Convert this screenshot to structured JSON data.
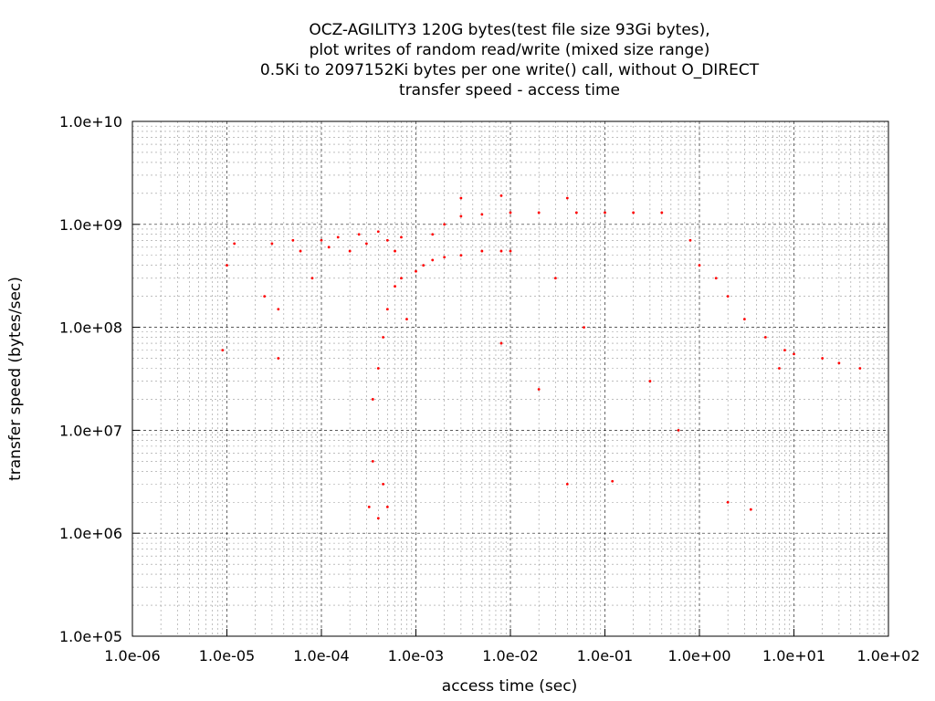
{
  "chart_data": {
    "type": "scatter",
    "title_lines": [
      "OCZ-AGILITY3 120G bytes(test file size 93Gi bytes),",
      "plot writes of random read/write (mixed size range)",
      "0.5Ki to 2097152Ki bytes per one write() call, without O_DIRECT",
      "transfer speed - access time"
    ],
    "xlabel": "access time (sec)",
    "ylabel": "transfer speed (bytes/sec)",
    "xscale": "log",
    "yscale": "log",
    "xlim": [
      1e-06,
      100
    ],
    "ylim": [
      100000.0,
      10000000000.0
    ],
    "xticks": [
      1e-06,
      1e-05,
      0.0001,
      0.001,
      0.01,
      0.1,
      1,
      10,
      100
    ],
    "xtick_labels": [
      "1.0e-06",
      "1.0e-05",
      "1.0e-04",
      "1.0e-03",
      "1.0e-02",
      "1.0e-01",
      "1.0e+00",
      "1.0e+01",
      "1.0e+02"
    ],
    "yticks": [
      100000.0,
      1000000.0,
      10000000.0,
      100000000.0,
      1000000000.0,
      10000000000.0
    ],
    "ytick_labels": [
      "1.0e+05",
      "1.0e+06",
      "1.0e+07",
      "1.0e+08",
      "1.0e+09",
      "1.0e+10"
    ],
    "grid": true,
    "marker_color": "#ff0000",
    "series": [
      {
        "values": [
          [
            1e-05,
            400000000.0
          ],
          [
            1.2e-05,
            650000000.0
          ],
          [
            2.5e-05,
            200000000.0
          ],
          [
            3.5e-05,
            150000000.0
          ],
          [
            3.5e-05,
            50000000.0
          ],
          [
            9e-06,
            60000000.0
          ],
          [
            3e-05,
            650000000.0
          ],
          [
            5e-05,
            700000000.0
          ],
          [
            6e-05,
            550000000.0
          ],
          [
            8e-05,
            300000000.0
          ],
          [
            0.0001,
            700000000.0
          ],
          [
            0.00012,
            600000000.0
          ],
          [
            0.00015,
            750000000.0
          ],
          [
            0.0002,
            550000000.0
          ],
          [
            0.00025,
            800000000.0
          ],
          [
            0.0003,
            650000000.0
          ],
          [
            0.0004,
            850000000.0
          ],
          [
            0.0005,
            700000000.0
          ],
          [
            0.0006,
            550000000.0
          ],
          [
            0.0007,
            750000000.0
          ],
          [
            0.00032,
            1800000.0
          ],
          [
            0.0004,
            1400000.0
          ],
          [
            0.0005,
            1800000.0
          ],
          [
            0.00035,
            5000000.0
          ],
          [
            0.00045,
            3000000.0
          ],
          [
            0.00035,
            20000000.0
          ],
          [
            0.0004,
            40000000.0
          ],
          [
            0.00045,
            80000000.0
          ],
          [
            0.0005,
            150000000.0
          ],
          [
            0.0006,
            250000000.0
          ],
          [
            0.0007,
            300000000.0
          ],
          [
            0.0008,
            120000000.0
          ],
          [
            0.001,
            350000000.0
          ],
          [
            0.0012,
            400000000.0
          ],
          [
            0.0015,
            450000000.0
          ],
          [
            0.002,
            480000000.0
          ],
          [
            0.003,
            500000000.0
          ],
          [
            0.005,
            550000000.0
          ],
          [
            0.008,
            550000000.0
          ],
          [
            0.01,
            550000000.0
          ],
          [
            0.0015,
            800000000.0
          ],
          [
            0.002,
            1000000000.0
          ],
          [
            0.003,
            1200000000.0
          ],
          [
            0.005,
            1250000000.0
          ],
          [
            0.01,
            1300000000.0
          ],
          [
            0.02,
            1300000000.0
          ],
          [
            0.05,
            1300000000.0
          ],
          [
            0.1,
            1300000000.0
          ],
          [
            0.2,
            1300000000.0
          ],
          [
            0.4,
            1300000000.0
          ],
          [
            0.003,
            1800000000.0
          ],
          [
            0.008,
            1900000000.0
          ],
          [
            0.04,
            1800000000.0
          ],
          [
            0.8,
            700000000.0
          ],
          [
            1.0,
            400000000.0
          ],
          [
            1.5,
            300000000.0
          ],
          [
            2.0,
            200000000.0
          ],
          [
            3.0,
            120000000.0
          ],
          [
            5.0,
            80000000.0
          ],
          [
            8.0,
            60000000.0
          ],
          [
            10.0,
            55000000.0
          ],
          [
            20.0,
            50000000.0
          ],
          [
            30.0,
            45000000.0
          ],
          [
            50.0,
            40000000.0
          ],
          [
            7.0,
            40000000.0
          ],
          [
            0.02,
            25000000.0
          ],
          [
            0.04,
            3000000.0
          ],
          [
            0.6,
            10000000.0
          ],
          [
            2.0,
            2000000.0
          ],
          [
            3.5,
            1700000.0
          ],
          [
            0.12,
            3200000.0
          ],
          [
            0.008,
            70000000.0
          ],
          [
            0.03,
            300000000.0
          ],
          [
            0.06,
            100000000.0
          ],
          [
            0.3,
            30000000.0
          ]
        ]
      }
    ]
  }
}
